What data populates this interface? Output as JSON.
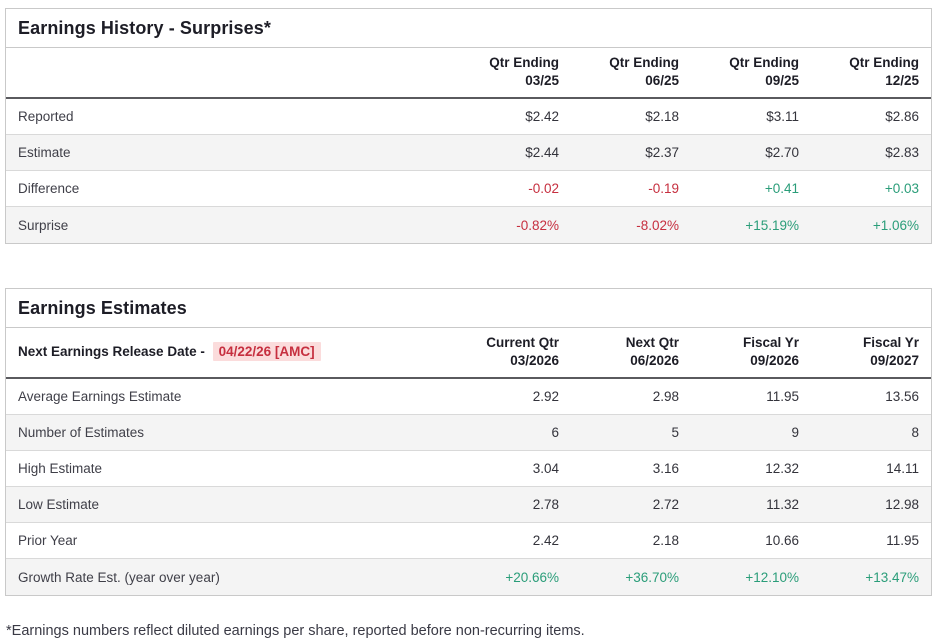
{
  "colors": {
    "positive": "#2a9d79",
    "negative": "#c62f3f",
    "highlight_bg": "#fbdcdc"
  },
  "earnings_history": {
    "title": "Earnings History - Surprises*",
    "columns": [
      {
        "line1": "Qtr Ending",
        "line2": "03/25"
      },
      {
        "line1": "Qtr Ending",
        "line2": "06/25"
      },
      {
        "line1": "Qtr Ending",
        "line2": "09/25"
      },
      {
        "line1": "Qtr Ending",
        "line2": "12/25"
      }
    ],
    "rows": [
      {
        "label": "Reported",
        "values": [
          "$2.42",
          "$2.18",
          "$3.11",
          "$2.86"
        ]
      },
      {
        "label": "Estimate",
        "values": [
          "$2.44",
          "$2.37",
          "$2.70",
          "$2.83"
        ]
      },
      {
        "label": "Difference",
        "values": [
          "-0.02",
          "-0.19",
          "+0.41",
          "+0.03"
        ]
      },
      {
        "label": "Surprise",
        "values": [
          "-0.82%",
          "-8.02%",
          "+15.19%",
          "+1.06%"
        ]
      }
    ]
  },
  "earnings_estimates": {
    "title": "Earnings Estimates",
    "release_label": "Next Earnings Release Date -",
    "release_date": "04/22/26 [AMC]",
    "columns": [
      {
        "line1": "Current Qtr",
        "line2": "03/2026"
      },
      {
        "line1": "Next Qtr",
        "line2": "06/2026"
      },
      {
        "line1": "Fiscal Yr",
        "line2": "09/2026"
      },
      {
        "line1": "Fiscal Yr",
        "line2": "09/2027"
      }
    ],
    "rows": [
      {
        "label": "Average Earnings Estimate",
        "values": [
          "2.92",
          "2.98",
          "11.95",
          "13.56"
        ]
      },
      {
        "label": "Number of Estimates",
        "values": [
          "6",
          "5",
          "9",
          "8"
        ]
      },
      {
        "label": "High Estimate",
        "values": [
          "3.04",
          "3.16",
          "12.32",
          "14.11"
        ]
      },
      {
        "label": "Low Estimate",
        "values": [
          "2.78",
          "2.72",
          "11.32",
          "12.98"
        ]
      },
      {
        "label": "Prior Year",
        "values": [
          "2.42",
          "2.18",
          "10.66",
          "11.95"
        ]
      },
      {
        "label": "Growth Rate Est. (year over year)",
        "values": [
          "+20.66%",
          "+36.70%",
          "+12.10%",
          "+13.47%"
        ]
      }
    ]
  },
  "footnote": "*Earnings numbers reflect diluted earnings per share, reported before non-recurring items."
}
